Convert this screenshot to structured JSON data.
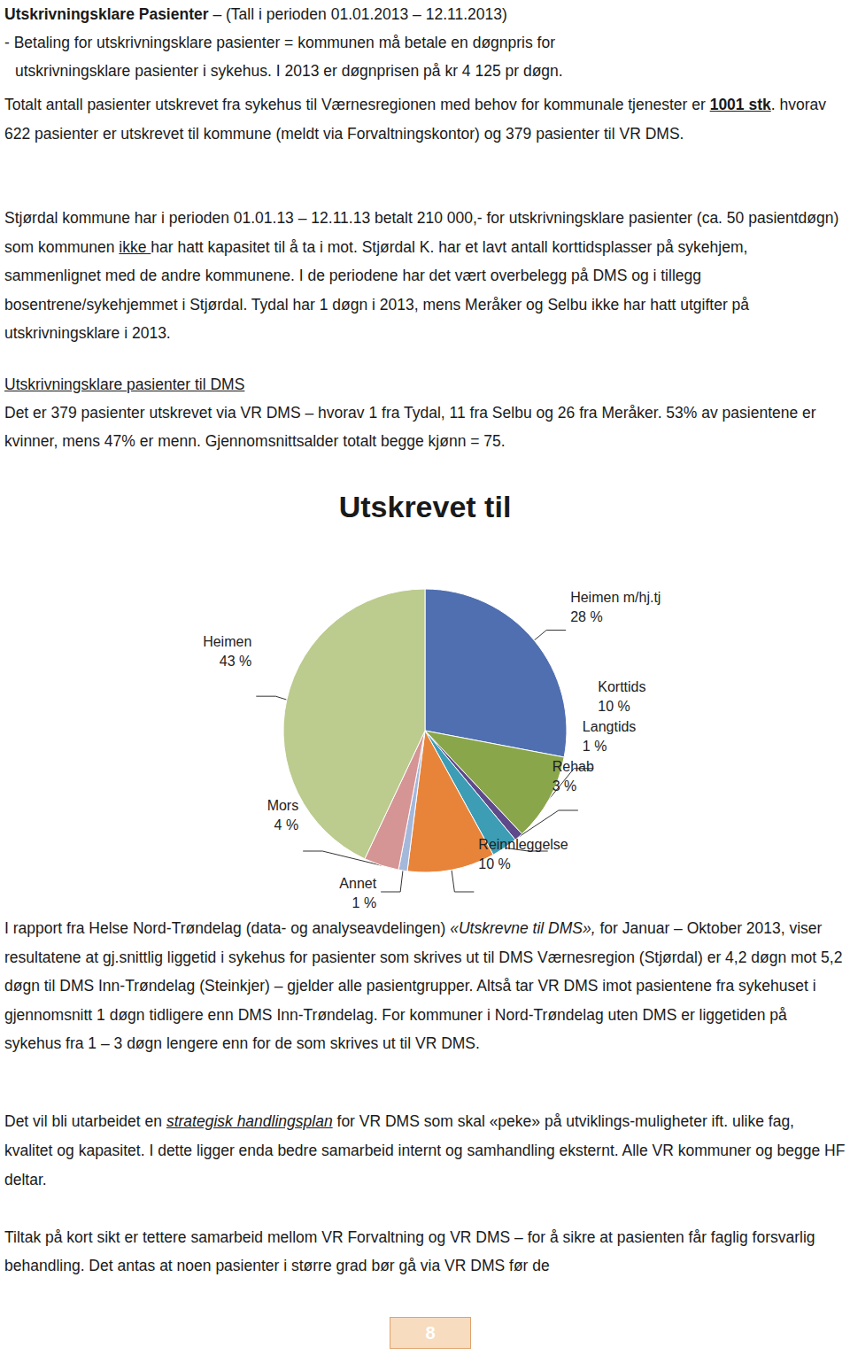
{
  "header": {
    "lines": [
      [
        {
          "text": "Utskrivningsklare Pasienter",
          "style": "bold"
        },
        {
          "text": " – (Tall i perioden 01.01.2013 – 12.11.2013)",
          "style": "plain"
        }
      ],
      [
        {
          "text": "- Betaling for utskrivningsklare pasienter = kommunen må betale en døgnpris for",
          "style": "plain"
        }
      ],
      [
        {
          "text": "utskrivningsklare pasienter i sykehus. I 2013 er døgnprisen på kr 4 125 pr døgn.",
          "style": "plain"
        }
      ]
    ]
  },
  "paragraphs_before": [
    [
      {
        "text": "Totalt antall pasienter utskrevet fra sykehus til Værnesregionen med behov for kommunale tjenester er ",
        "style": "plain"
      },
      {
        "text": "1001 stk",
        "style": "bold underline"
      },
      {
        "text": ". hvorav 622 pasienter er utskrevet til kommune (meldt via Forvaltningskontor) og 379 pasienter til VR DMS.",
        "style": "plain"
      }
    ],
    [
      {
        "text": "Stjørdal kommune har i perioden 01.01.13 – 12.11.13 betalt 210 000,- for utskrivningsklare pasienter (ca. 50 pasientdøgn) som kommunen ",
        "style": "plain"
      },
      {
        "text": "ikke ",
        "style": "underline"
      },
      {
        "text": "har hatt kapasitet til å ta i mot. Stjørdal K. har et lavt antall korttidsplasser på sykehjem, sammenlignet med de andre kommunene. I de periodene har det vært overbelegg på DMS og i tillegg bosentrene/sykehjemmet i Stjørdal. Tydal har 1 døgn i 2013, mens Meråker og Selbu ikke har hatt utgifter på utskrivningsklare i 2013.",
        "style": "plain"
      }
    ],
    [
      {
        "text": "Utskrivningsklare pasienter til DMS",
        "style": "underline"
      }
    ],
    [
      {
        "text": "Det er 379 pasienter utskrevet via VR DMS – hvorav 1 fra Tydal, 11 fra Selbu og 26 fra Meråker. 53% av pasientene er kvinner, mens 47% er menn. Gjennomsnittsalder totalt begge kjønn = 75.",
        "style": "plain"
      }
    ]
  ],
  "chart_data": {
    "type": "pie",
    "title": "Utskrevet til",
    "categories": [
      "Heimen m/hj.tj",
      "Korttids",
      "Langtids",
      "Rehab",
      "Reinnleggelse",
      "Annet",
      "Mors",
      "Heimen"
    ],
    "values": [
      28,
      10,
      1,
      3,
      10,
      1,
      4,
      43
    ],
    "value_labels": [
      "28 %",
      "10 %",
      "1 %",
      "3 %",
      "10 %",
      "1 %",
      "4 %",
      "43 %"
    ],
    "colors": [
      "#4f6fb0",
      "#8aa64a",
      "#5e4a8a",
      "#3c9db5",
      "#e8843a",
      "#a4b8dc",
      "#d69595",
      "#bccb8e"
    ],
    "data_labels": true
  },
  "paragraphs_after": [
    [
      {
        "text": "I rapport fra Helse Nord-Trøndelag (data- og analyseavdelingen) ",
        "style": "plain"
      },
      {
        "text": "«Utskrevne til DMS»,",
        "style": "italic"
      },
      {
        "text": " for Januar – Oktober 2013, viser resultatene at gj.snittlig liggetid i sykehus for pasienter som skrives ut til DMS Værnesregion (Stjørdal) er 4,2 døgn mot 5,2 døgn til DMS Inn-Trøndelag (Steinkjer) – gjelder alle pasientgrupper. Altså tar VR DMS imot pasientene fra sykehuset i gjennomsnitt 1 døgn tidligere enn DMS Inn-Trøndelag. For kommuner i Nord-Trøndelag uten DMS er liggetiden på sykehus fra 1 – 3 døgn lengere enn for de som skrives ut til VR DMS.",
        "style": "plain"
      }
    ],
    [
      {
        "text": "Det vil bli utarbeidet en ",
        "style": "plain"
      },
      {
        "text": "strategisk handlingsplan",
        "style": "italic underline"
      },
      {
        "text": " for VR DMS som skal «peke» på utviklings-muligheter ift. ulike fag, kvalitet og kapasitet. I dette ligger enda bedre samarbeid internt og samhandling eksternt. Alle VR kommuner og begge HF deltar.",
        "style": "plain"
      }
    ],
    [
      {
        "text": "Tiltak på kort sikt er tettere samarbeid mellom VR Forvaltning og VR DMS – for å sikre at pasienten får faglig forsvarlig behandling. Det antas at noen pasienter i større grad bør gå via VR DMS før de",
        "style": "plain"
      }
    ]
  ],
  "page_number": "8"
}
